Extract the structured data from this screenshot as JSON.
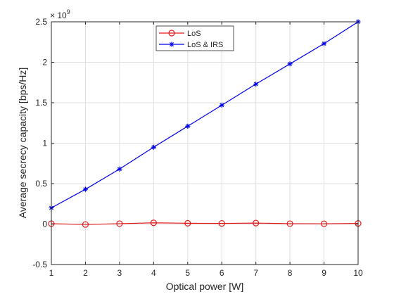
{
  "chart_data": {
    "type": "line",
    "title": "",
    "xlabel": "Optical power [W]",
    "ylabel": "Average secrecy capacity [bps/Hz]",
    "xlim": [
      1,
      10
    ],
    "ylim": [
      -0.5,
      2.5
    ],
    "y_multiplier_label": "× 10",
    "y_multiplier_exponent": "9",
    "grid": true,
    "legend_position": "top-center",
    "x_ticks": [
      1,
      2,
      3,
      4,
      5,
      6,
      7,
      8,
      9,
      10
    ],
    "x_tick_labels": [
      "1",
      "2",
      "3",
      "4",
      "5",
      "6",
      "7",
      "8",
      "9",
      "10"
    ],
    "y_ticks": [
      -0.5,
      0,
      0.5,
      1,
      1.5,
      2,
      2.5
    ],
    "y_tick_labels": [
      "-0.5",
      "0",
      "0.5",
      "1",
      "1.5",
      "2",
      "2.5"
    ],
    "x": [
      1,
      2,
      3,
      4,
      5,
      6,
      7,
      8,
      9,
      10
    ],
    "series": [
      {
        "name": "LoS",
        "color": "#e31a1c",
        "marker": "circle",
        "values": [
          0.005,
          -0.005,
          0.005,
          0.015,
          0.01,
          0.008,
          0.012,
          0.005,
          0.004,
          0.008
        ]
      },
      {
        "name": "LoS & IRS",
        "color": "#0000e6",
        "marker": "star",
        "values": [
          0.2,
          0.43,
          0.68,
          0.95,
          1.21,
          1.47,
          1.73,
          1.98,
          2.23,
          2.5
        ]
      }
    ]
  }
}
